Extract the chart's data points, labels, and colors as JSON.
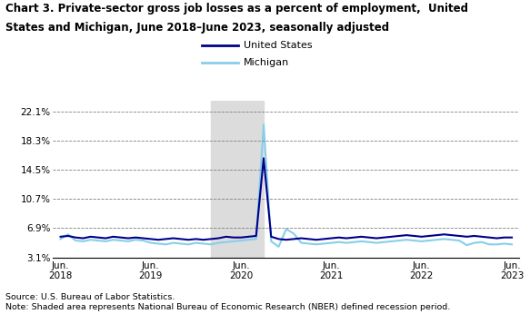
{
  "title_line1": "Chart 3. Private-sector gross job losses as a percent of employment,  United",
  "title_line2": "States and Michigan, June 2018–June 2023, seasonally adjusted",
  "us_color": "#00008B",
  "mi_color": "#87CEEB",
  "recession_color": "#DCDCDC",
  "recession_start": 20,
  "recession_end": 27,
  "yticks": [
    3.1,
    6.9,
    10.7,
    14.5,
    18.3,
    22.1
  ],
  "ytick_labels": [
    "3.1%",
    "6.9%",
    "10.7%",
    "14.5%",
    "18.3%",
    "22.1%"
  ],
  "ylim": [
    3.1,
    23.5
  ],
  "xtick_positions": [
    0,
    12,
    24,
    36,
    48,
    60
  ],
  "xtick_labels": [
    "Jun.\n2018",
    "Jun.\n2019",
    "Jun.\n2020",
    "Jun.\n2021",
    "Jun.\n2022",
    "Jun.\n2023"
  ],
  "source_text": "Source: U.S. Bureau of Labor Statistics.\nNote: Shaded area represents National Bureau of Economic Research (NBER) defined recession period.",
  "us_data": [
    5.8,
    5.9,
    5.7,
    5.6,
    5.8,
    5.7,
    5.6,
    5.8,
    5.7,
    5.6,
    5.7,
    5.6,
    5.5,
    5.4,
    5.5,
    5.6,
    5.5,
    5.4,
    5.5,
    5.4,
    5.5,
    5.6,
    5.8,
    5.7,
    5.7,
    5.8,
    5.9,
    16.0,
    5.8,
    5.5,
    5.4,
    5.5,
    5.6,
    5.5,
    5.4,
    5.5,
    5.6,
    5.7,
    5.6,
    5.7,
    5.8,
    5.7,
    5.6,
    5.7,
    5.8,
    5.9,
    6.0,
    5.9,
    5.8,
    5.9,
    6.0,
    6.1,
    6.0,
    5.9,
    5.8,
    5.9,
    5.8,
    5.7,
    5.6,
    5.7,
    5.7
  ],
  "mi_data": [
    5.5,
    6.1,
    5.3,
    5.2,
    5.4,
    5.3,
    5.2,
    5.4,
    5.3,
    5.2,
    5.4,
    5.3,
    5.0,
    4.9,
    4.8,
    5.0,
    4.9,
    4.8,
    5.0,
    4.9,
    4.8,
    5.0,
    5.1,
    5.2,
    5.3,
    5.4,
    5.5,
    20.4,
    5.2,
    4.5,
    6.8,
    6.2,
    5.0,
    4.9,
    4.8,
    4.9,
    5.0,
    5.1,
    5.0,
    5.1,
    5.2,
    5.1,
    5.0,
    5.1,
    5.2,
    5.3,
    5.4,
    5.3,
    5.2,
    5.3,
    5.4,
    5.5,
    5.4,
    5.3,
    4.7,
    5.0,
    5.1,
    4.8,
    4.8,
    4.9,
    4.8
  ]
}
